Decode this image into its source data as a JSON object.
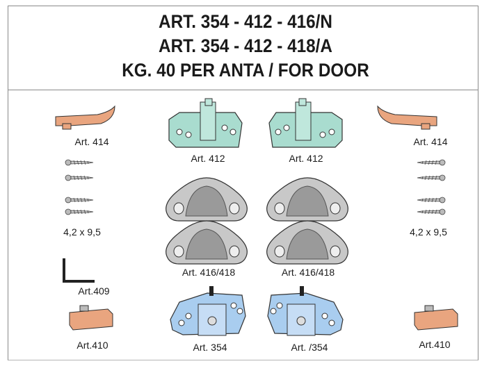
{
  "header": {
    "line1": "ART. 354 - 412 - 416/N",
    "line2": "ART. 354 - 412 - 418/A",
    "line3": "KG. 40 PER ANTA / FOR DOOR"
  },
  "labels": {
    "art414_left": "Art. 414",
    "screws_left": "4,2 x 9,5",
    "art409": "Art.409",
    "art410_left": "Art.410",
    "art412_left": "Art. 412",
    "art412_right": "Art. 412",
    "art416_left": "Art. 416/418",
    "art416_right": "Art. 416/418",
    "art354_left": "Art. 354",
    "art354_right": "Art. /354",
    "art414_right": "Art. 414",
    "screws_right": "4,2 x 9,5",
    "art410_right": "Art.410"
  },
  "colors": {
    "copper": "#e9a57f",
    "teal": "#a9dccf",
    "blue": "#a9cdef",
    "grey": "#c4c4c4"
  }
}
